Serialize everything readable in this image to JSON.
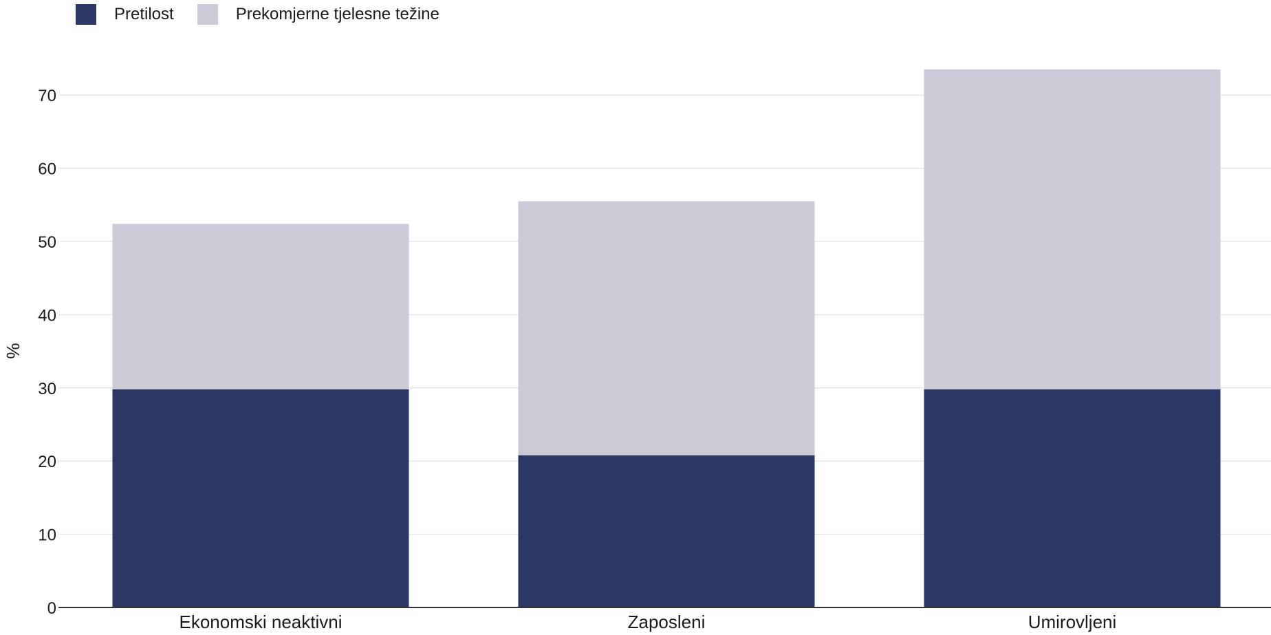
{
  "chart_data": {
    "type": "bar",
    "stacked": true,
    "categories": [
      "Ekonomski neaktivni",
      "Zaposleni",
      "Umirovljeni"
    ],
    "series": [
      {
        "name": "Pretilost",
        "values": [
          29.8,
          20.8,
          29.8
        ],
        "color": "#2b3764"
      },
      {
        "name": "Prekomjerne tjelesne težine",
        "values": [
          22.6,
          34.7,
          43.7
        ],
        "color": "#cacbd7"
      }
    ],
    "title": "",
    "xlabel": "",
    "ylabel": "%",
    "ylim": [
      0,
      75
    ],
    "yticks": [
      0,
      10,
      20,
      30,
      40,
      50,
      60,
      70
    ],
    "grid": true,
    "legend_position": "top-left"
  }
}
